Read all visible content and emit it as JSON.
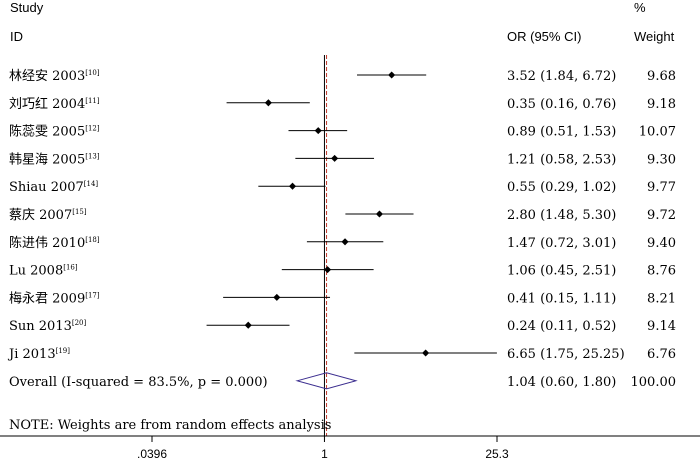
{
  "header": {
    "study_line1": "Study",
    "study_line2": "ID",
    "or_label": "OR (95% CI)",
    "weight_line1": "%",
    "weight_line2": "Weight"
  },
  "chart_data": {
    "type": "forest",
    "x_scale": "log",
    "xlim": [
      0.0396,
      25.3
    ],
    "x_ticks": [
      {
        "value": 0.0396,
        "label": ".0396"
      },
      {
        "value": 1,
        "label": "1"
      },
      {
        "value": 25.3,
        "label": "25.3"
      }
    ],
    "reference_line": 1,
    "studies": [
      {
        "name": "林经安 2003",
        "ref": "[10]",
        "or": 3.52,
        "lo": 1.84,
        "hi": 6.72,
        "or_text": "3.52 (1.84, 6.72)",
        "weight": "9.68"
      },
      {
        "name": "刘巧红 2004",
        "ref": "[11]",
        "or": 0.35,
        "lo": 0.16,
        "hi": 0.76,
        "or_text": "0.35 (0.16, 0.76)",
        "weight": "9.18"
      },
      {
        "name": "陈蕊雯 2005",
        "ref": "[12]",
        "or": 0.89,
        "lo": 0.51,
        "hi": 1.53,
        "or_text": "0.89 (0.51, 1.53)",
        "weight": "10.07"
      },
      {
        "name": "韩星海 2005",
        "ref": "[13]",
        "or": 1.21,
        "lo": 0.58,
        "hi": 2.53,
        "or_text": "1.21 (0.58, 2.53)",
        "weight": "9.30"
      },
      {
        "name": "Shiau 2007",
        "ref": "[14]",
        "or": 0.55,
        "lo": 0.29,
        "hi": 1.02,
        "or_text": "0.55 (0.29, 1.02)",
        "weight": "9.77"
      },
      {
        "name": "蔡庆 2007",
        "ref": "[15]",
        "or": 2.8,
        "lo": 1.48,
        "hi": 5.3,
        "or_text": "2.80 (1.48, 5.30)",
        "weight": "9.72"
      },
      {
        "name": "陈进伟 2010",
        "ref": "[18]",
        "or": 1.47,
        "lo": 0.72,
        "hi": 3.01,
        "or_text": "1.47 (0.72, 3.01)",
        "weight": "9.40"
      },
      {
        "name": "Lu 2008",
        "ref": "[16]",
        "or": 1.06,
        "lo": 0.45,
        "hi": 2.51,
        "or_text": "1.06 (0.45, 2.51)",
        "weight": "8.76"
      },
      {
        "name": "梅永君 2009",
        "ref": "[17]",
        "or": 0.41,
        "lo": 0.15,
        "hi": 1.11,
        "or_text": "0.41 (0.15, 1.11)",
        "weight": "8.21"
      },
      {
        "name": "Sun 2013",
        "ref": "[20]",
        "or": 0.24,
        "lo": 0.11,
        "hi": 0.52,
        "or_text": "0.24 (0.11, 0.52)",
        "weight": "9.14"
      },
      {
        "name": "Ji 2013",
        "ref": "[19]",
        "or": 6.65,
        "lo": 1.75,
        "hi": 25.25,
        "or_text": "6.65 (1.75, 25.25)",
        "weight": "6.76"
      }
    ],
    "overall": {
      "label": "Overall  (I-squared = 83.5%, p = 0.000)",
      "or": 1.04,
      "lo": 0.6,
      "hi": 1.8,
      "or_text": "1.04 (0.60, 1.80)",
      "weight": "100.00"
    },
    "note": "NOTE: Weights are from random effects analysis",
    "colors": {
      "marker": "#000000",
      "reference_line": "#000000",
      "overall_line": "#c0392b",
      "diamond": "#3b2d8f"
    }
  }
}
